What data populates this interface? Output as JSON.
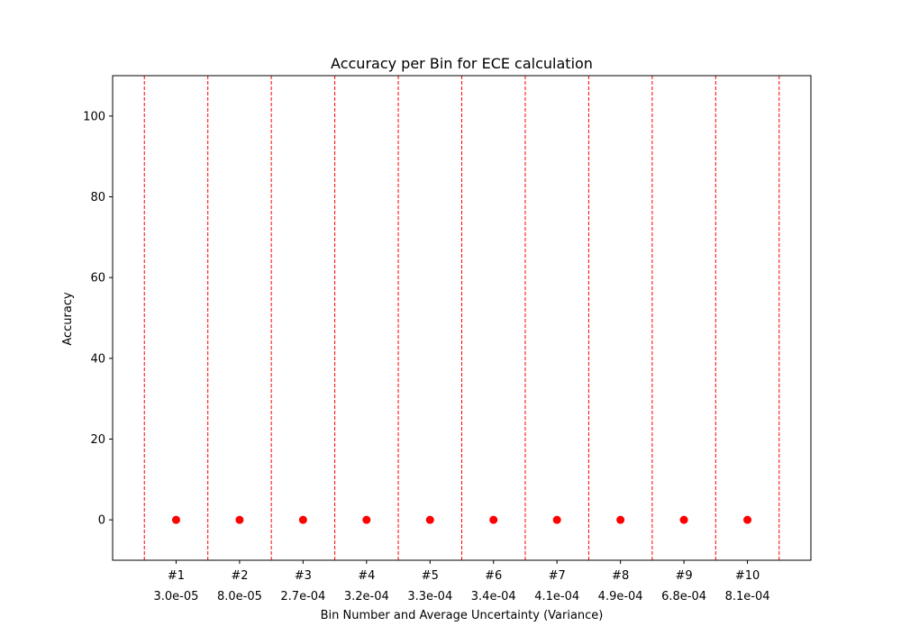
{
  "chart_data": {
    "type": "scatter",
    "title": "Accuracy per Bin for ECE calculation",
    "xlabel": "Bin Number and Average Uncertainty (Variance)",
    "ylabel": "Accuracy",
    "ylim": [
      -10,
      110
    ],
    "yticks": [
      0,
      20,
      40,
      60,
      80,
      100
    ],
    "categories": [
      "#1\n3.0e-05",
      "#2\n8.0e-05",
      "#3\n2.7e-04",
      "#4\n3.2e-04",
      "#5\n3.3e-04",
      "#6\n3.4e-04",
      "#7\n4.1e-04",
      "#8\n4.9e-04",
      "#9\n6.8e-04",
      "#10\n8.1e-04"
    ],
    "bins": [
      {
        "number": "#1",
        "uncertainty": "3.0e-05"
      },
      {
        "number": "#2",
        "uncertainty": "8.0e-05"
      },
      {
        "number": "#3",
        "uncertainty": "2.7e-04"
      },
      {
        "number": "#4",
        "uncertainty": "3.2e-04"
      },
      {
        "number": "#5",
        "uncertainty": "3.3e-04"
      },
      {
        "number": "#6",
        "uncertainty": "3.4e-04"
      },
      {
        "number": "#7",
        "uncertainty": "4.1e-04"
      },
      {
        "number": "#8",
        "uncertainty": "4.9e-04"
      },
      {
        "number": "#9",
        "uncertainty": "6.8e-04"
      },
      {
        "number": "#10",
        "uncertainty": "8.1e-04"
      }
    ],
    "series": [
      {
        "values": [
          0,
          0,
          0,
          0,
          0,
          0,
          0,
          0,
          0,
          0
        ],
        "color": "#ff0000"
      }
    ],
    "bin_boundaries": {
      "style": "dashed",
      "color": "#ff0000"
    },
    "grid": false,
    "legend": "none"
  }
}
